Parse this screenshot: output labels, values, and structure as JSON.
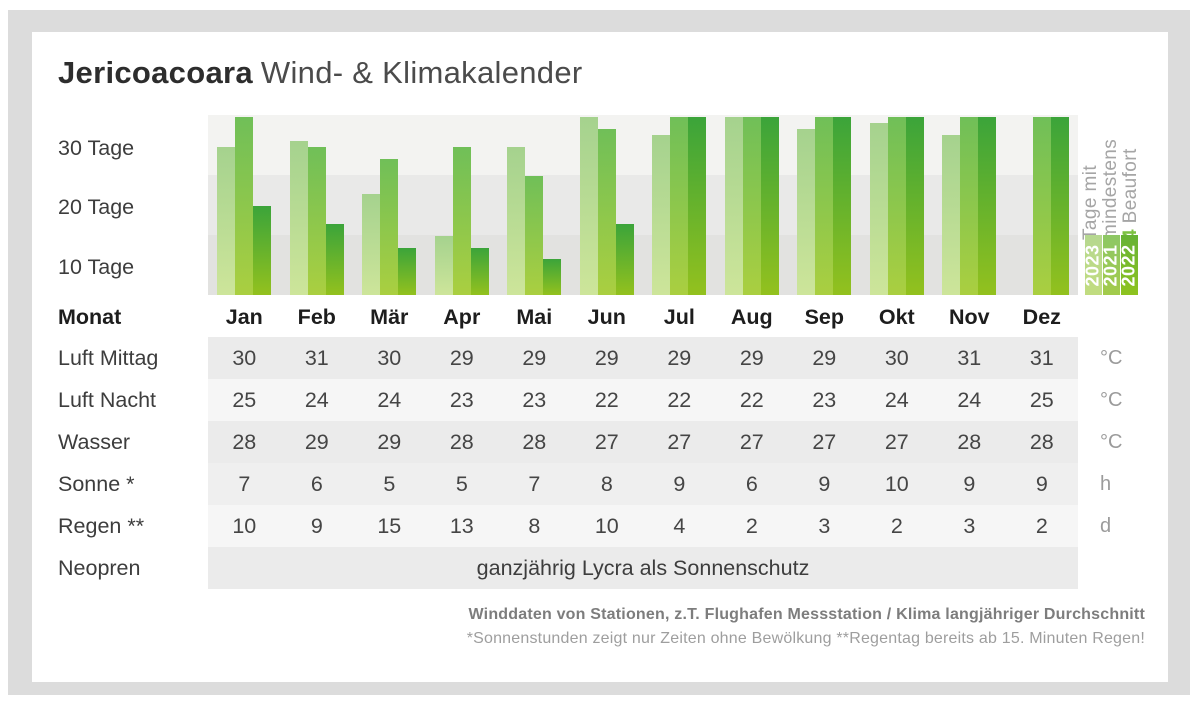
{
  "title": {
    "brand": "Jericoacoara",
    "subtitle": "Wind- & Klimakalender"
  },
  "axis": {
    "tick_30": "30 Tage",
    "tick_20": "20 Tage",
    "tick_10": "10 Tage",
    "month_header_label": "Monat"
  },
  "chart_data": {
    "type": "bar",
    "title": "Tage mit mindestens 4 Beaufort",
    "ylabel": "Tage",
    "ylim": [
      0,
      30
    ],
    "grid_bands": [
      "30 Tage",
      "20 Tage",
      "10 Tage"
    ],
    "legend_position": "right-rotated",
    "categories": [
      "Jan",
      "Feb",
      "Mär",
      "Apr",
      "Mai",
      "Jun",
      "Jul",
      "Aug",
      "Sep",
      "Okt",
      "Nov",
      "Dez"
    ],
    "series": [
      {
        "name": "2023",
        "color_top": "#a5d28e",
        "color_bottom": "#cde59a",
        "values": [
          25,
          26,
          17,
          10,
          25,
          30,
          27,
          30,
          28,
          29,
          27,
          null
        ]
      },
      {
        "name": "2021",
        "color_top": "#70bf58",
        "color_bottom": "#aacf40",
        "values": [
          30,
          25,
          23,
          25,
          20,
          28,
          30,
          30,
          30,
          30,
          30,
          30
        ]
      },
      {
        "name": "2022",
        "color_top": "#3ba43a",
        "color_bottom": "#93c11e",
        "values": [
          15,
          12,
          8,
          8,
          6,
          12,
          30,
          30,
          30,
          30,
          30,
          30
        ]
      }
    ]
  },
  "legend": {
    "line1": "Tage mit",
    "line2": "mindestens",
    "line3_num": "4",
    "line3_rest": " Beaufort",
    "years": [
      {
        "label": "2023",
        "color_top": "#b6d890",
        "color_bottom": "#c1dc7f"
      },
      {
        "label": "2021",
        "color_top": "#8dc765",
        "color_bottom": "#a3cb4b"
      },
      {
        "label": "2022",
        "color_top": "#66b236",
        "color_bottom": "#8ec31f"
      }
    ]
  },
  "table": {
    "rows": [
      {
        "label": "Luft Mittag",
        "unit": "°C",
        "values": [
          30,
          31,
          30,
          29,
          29,
          29,
          29,
          29,
          29,
          30,
          31,
          31
        ]
      },
      {
        "label": "Luft Nacht",
        "unit": "°C",
        "values": [
          25,
          24,
          24,
          23,
          23,
          22,
          22,
          22,
          23,
          24,
          24,
          25
        ]
      },
      {
        "label": "Wasser",
        "unit": "°C",
        "values": [
          28,
          29,
          29,
          28,
          28,
          27,
          27,
          27,
          27,
          27,
          28,
          28
        ]
      },
      {
        "label": "Sonne *",
        "unit": "h",
        "values": [
          7,
          6,
          5,
          5,
          7,
          8,
          9,
          6,
          9,
          10,
          9,
          9
        ]
      },
      {
        "label": "Regen **",
        "unit": "d",
        "values": [
          10,
          9,
          15,
          13,
          8,
          10,
          4,
          2,
          3,
          2,
          3,
          2
        ]
      },
      {
        "label": "Neopren",
        "unit": "",
        "span_text": "ganzjährig Lycra als Sonnenschutz"
      }
    ]
  },
  "footer": {
    "line1": "Winddaten von Stationen, z.T. Flughafen Messstation / Klima langjähriger Durchschnitt",
    "line2": "*Sonnenstunden zeigt nur Zeiten ohne Bewölkung  **Regentag bereits ab 15. Minuten Regen!"
  }
}
